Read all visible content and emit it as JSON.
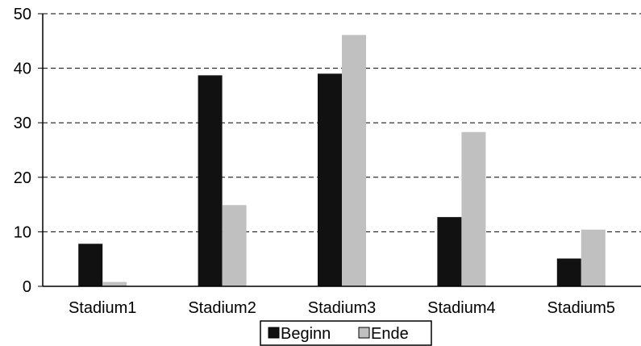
{
  "chart_data": {
    "type": "bar",
    "categories": [
      "Stadium1",
      "Stadium2",
      "Stadium3",
      "Stadium4",
      "Stadium5"
    ],
    "series": [
      {
        "name": "Beginn",
        "values": [
          7.8,
          38.7,
          39.0,
          12.7,
          5.1
        ],
        "color": "#111111"
      },
      {
        "name": "Ende",
        "values": [
          0.8,
          14.9,
          46.1,
          28.3,
          10.4
        ],
        "color": "#c0c0c0"
      }
    ],
    "title": "",
    "xlabel": "",
    "ylabel": "",
    "ylim": [
      0,
      50
    ],
    "yticks": [
      0,
      10,
      20,
      30,
      40,
      50
    ],
    "grid": "horizontal dashed",
    "legend": "bottom-center"
  }
}
